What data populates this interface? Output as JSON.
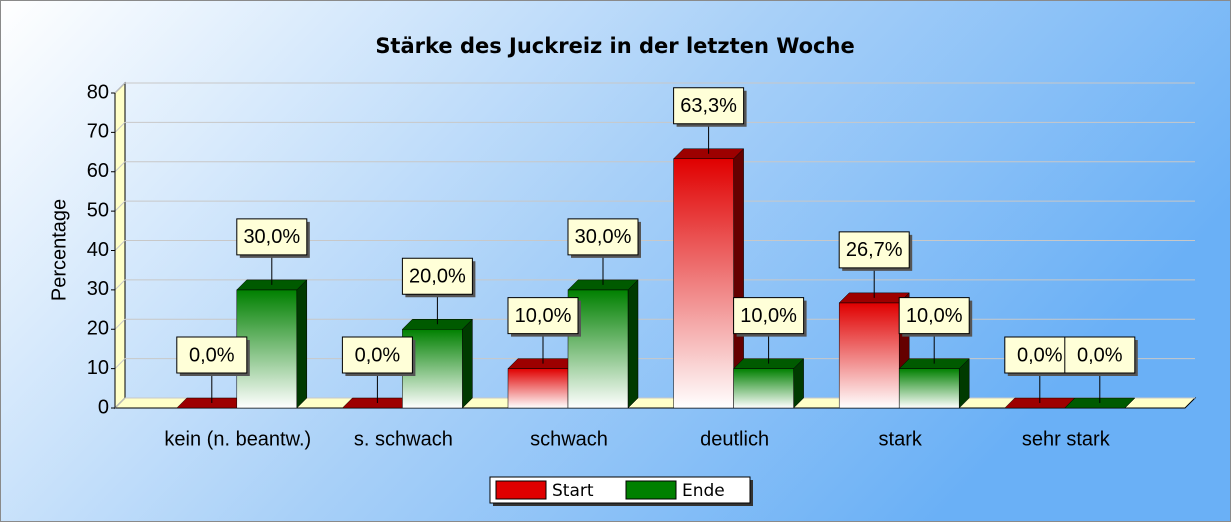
{
  "chart_data": {
    "type": "bar3d",
    "title": "Stärke des Juckreiz in der letzten Woche",
    "y_label": "Percentage",
    "categories": [
      "kein (n. beantw.)",
      "s. schwach",
      "schwach",
      "deutlich",
      "stark",
      "sehr stark"
    ],
    "series": [
      {
        "name": "Start",
        "color": "#e00000",
        "values": [
          0,
          0,
          10,
          63.3,
          26.7,
          0
        ],
        "value_labels": [
          "0,0%",
          "0,0%",
          "10,0%",
          "63,3%",
          "26,7%",
          "0,0%"
        ]
      },
      {
        "name": "Ende",
        "color": "#008000",
        "values": [
          30,
          20,
          30,
          10,
          10,
          0
        ],
        "value_labels": [
          "30,0%",
          "20,0%",
          "30,0%",
          "10,0%",
          "10,0%",
          "0,0%"
        ]
      }
    ],
    "ylim": [
      0,
      80
    ],
    "yticks": [
      0,
      10,
      20,
      30,
      40,
      50,
      60,
      70,
      80
    ],
    "grid": true,
    "legend": "bottom"
  }
}
